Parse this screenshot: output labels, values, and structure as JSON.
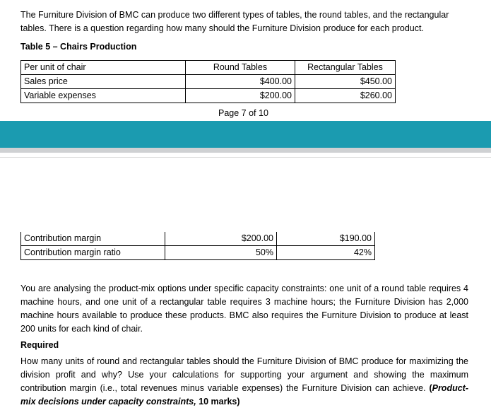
{
  "intro": "The Furniture Division of BMC can produce two different types of tables, the round tables, and the rectangular tables. There is a question regarding how many should the Furniture Division produce for each product.",
  "table_caption": "Table 5 – Chairs Production",
  "table_top": {
    "headers": [
      "Per unit of chair",
      "Round Tables",
      "Rectangular Tables"
    ],
    "rows": [
      [
        "Sales price",
        "$400.00",
        "$450.00"
      ],
      [
        "Variable expenses",
        "$200.00",
        "$260.00"
      ]
    ]
  },
  "page_number": "Page 7 of 10",
  "table_bottom": {
    "rows": [
      [
        "Contribution margin",
        "$200.00",
        "$190.00"
      ],
      [
        "Contribution margin ratio",
        "50%",
        "42%"
      ]
    ]
  },
  "analysis": "You are analysing the product-mix options under specific capacity constraints: one unit of a round table requires 4 machine hours, and one unit of a rectangular table requires 3 machine hours; the Furniture Division has 2,000 machine hours available to produce these products. BMC also requires the Furniture Division to produce at least 200 units for each kind of chair.",
  "required_heading": "Required",
  "question": {
    "text": "How many units of round and rectangular tables should the Furniture Division of BMC produce for maximizing the division profit and why? Use your calculations for supporting your argument and showing the maximum contribution margin (i.e., total revenues minus variable expenses) the Furniture Division can achieve. ",
    "open_paren": "(",
    "emphasis": "Product-mix decisions under capacity constraints,",
    "marks": " 10 marks)"
  },
  "colors": {
    "band": "#1b9bb0",
    "band_shadow": "#cfd1d3"
  }
}
